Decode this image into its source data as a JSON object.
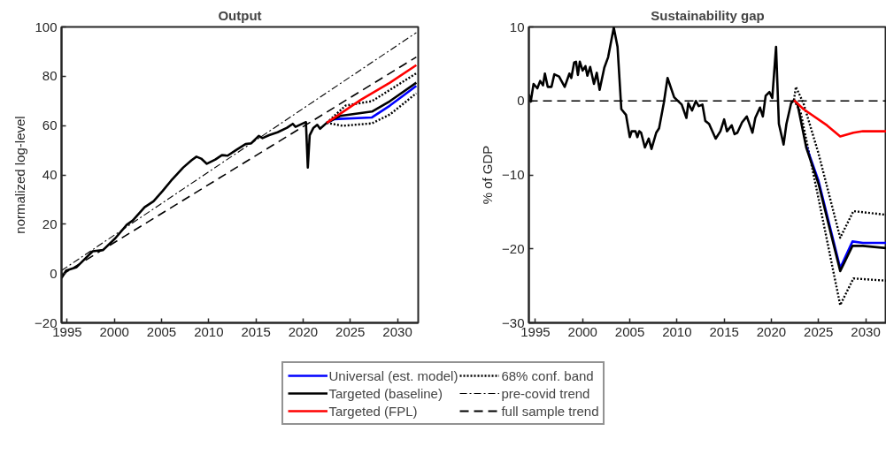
{
  "chart_data": [
    {
      "type": "line",
      "title": "Output",
      "ylabel": "normalized log-level",
      "xlim": [
        1994.4,
        2032.2
      ],
      "ylim": [
        -20,
        100
      ],
      "xticks": [
        1995,
        2000,
        2005,
        2010,
        2015,
        2020,
        2025,
        2030
      ],
      "yticks": [
        -20,
        0,
        20,
        40,
        60,
        80,
        100
      ],
      "grid": false,
      "legend": "bottom",
      "marker": "none",
      "series": [
        {
          "name": "68% conf. band",
          "color": "#000000",
          "line_style": "dotted",
          "x": [
            2022.5,
            2024.5,
            2027.3,
            2032.0
          ],
          "values": [
            61.1,
            68.1,
            69.9,
            81.2
          ]
        },
        {
          "color": "#000000",
          "line_style": "dotted",
          "x": [
            2022.5,
            2024.2,
            2027.3,
            2029.2,
            2032.0
          ],
          "values": [
            61.1,
            59.9,
            60.9,
            64.5,
            73.1
          ]
        },
        {
          "name": "pre-covid trend",
          "color": "#000000",
          "line_style": "dashdot",
          "x": [
            1994.4,
            2032.0
          ],
          "values": [
            1.2,
            97.7
          ]
        },
        {
          "name": "full sample trend",
          "color": "#000000",
          "line_style": "dashed",
          "x": [
            1994.4,
            2032.0
          ],
          "values": [
            -0.6,
            87.8
          ]
        },
        {
          "name": "Universal (est. model)",
          "color": "#0000ff",
          "line_style": "solid",
          "x": [
            2022.5,
            2023.3,
            2027.3,
            2029.2,
            2032.0
          ],
          "values": [
            61.1,
            62.6,
            63.3,
            68.1,
            76.1
          ]
        },
        {
          "name": "Targeted (baseline)",
          "color": "#000000",
          "line_style": "solid",
          "x": [
            1994.4,
            1994.9,
            1996.0,
            1997.7,
            1998.8,
            2000.1,
            2001.3,
            2001.95,
            2003.2,
            2004.15,
            2005.1,
            2006.0,
            2007.3,
            2008.2,
            2008.7,
            2009.2,
            2009.8,
            2010.7,
            2011.4,
            2012.0,
            2012.9,
            2013.9,
            2014.5,
            2015.3,
            2015.7,
            2016.4,
            2017.3,
            2018.3,
            2018.9,
            2019.2,
            2020.1,
            2020.3,
            2020.5,
            2020.7,
            2021.1,
            2021.5,
            2021.8,
            2022.5,
            2023.9,
            2027.3,
            2029.2,
            2032.0
          ],
          "values": [
            -1.8,
            1.2,
            2.6,
            9,
            9.5,
            14.3,
            19.7,
            21.5,
            26.9,
            29.3,
            33.4,
            37.6,
            43,
            46,
            47.4,
            46.6,
            44.5,
            46.2,
            48,
            47.8,
            50.1,
            52.5,
            52.8,
            55.8,
            54.9,
            56.1,
            57.3,
            59.1,
            60.7,
            59.5,
            61.1,
            61.4,
            43,
            56.1,
            59.1,
            60.3,
            58.7,
            61.1,
            63.9,
            65.7,
            69.9,
            77.4
          ]
        },
        {
          "name": "Targeted (FPL)",
          "color": "#ff0000",
          "line_style": "solid",
          "x": [
            2022.5,
            2026.1,
            2029.2,
            2032.0
          ],
          "values": [
            61.1,
            70.4,
            77.4,
            84.5
          ]
        }
      ]
    },
    {
      "type": "line",
      "title": "Sustainability gap",
      "ylabel": "% of GDP",
      "xlim": [
        1994.3,
        2032.2
      ],
      "ylim": [
        -30,
        10
      ],
      "xticks": [
        1995,
        2000,
        2005,
        2010,
        2015,
        2020,
        2025,
        2030
      ],
      "yticks": [
        -30,
        -20,
        -10,
        0,
        10
      ],
      "grid": false,
      "marker": "none",
      "ref_lines": [
        {
          "axis": "y",
          "value": 0,
          "color": "#000000",
          "line_style": "dashed"
        }
      ],
      "series": [
        {
          "color": "#000000",
          "line_style": "dotted",
          "x": [
            2022.4,
            2022.6,
            2023.4,
            2025.0,
            2027.3,
            2028.7,
            2032.2
          ],
          "values": [
            0.1,
            1.9,
            -0.3,
            -7.1,
            -18.5,
            -14.9,
            -15.4
          ]
        },
        {
          "color": "#000000",
          "line_style": "dotted",
          "x": [
            2022.4,
            2023.1,
            2025.0,
            2027.3,
            2028.7,
            2032.2
          ],
          "values": [
            0.1,
            -1.5,
            -13.2,
            -27.6,
            -24.0,
            -24.3
          ]
        },
        {
          "color": "#0000ff",
          "line_style": "solid",
          "x": [
            2023.7,
            2025.0,
            2027.3,
            2028.6,
            2029.7,
            2032.2
          ],
          "values": [
            -6.1,
            -10.8,
            -22.6,
            -19.0,
            -19.2,
            -19.2
          ]
        },
        {
          "color": "#000000",
          "line_style": "solid",
          "x": [
            1994.3,
            1994.5,
            1994.8,
            1995.2,
            1995.5,
            1995.8,
            1996.0,
            1996.3,
            1996.7,
            1997.0,
            1997.5,
            1998.1,
            1998.6,
            1998.8,
            1999.1,
            1999.3,
            1999.5,
            1999.7,
            2000.0,
            2000.3,
            2000.5,
            2000.8,
            2001.2,
            2001.5,
            2001.8,
            2002.3,
            2002.7,
            2003.3,
            2003.7,
            2004.1,
            2004.6,
            2005.0,
            2005.2,
            2005.6,
            2005.8,
            2006.0,
            2006.2,
            2006.6,
            2007.0,
            2007.3,
            2007.8,
            2008.1,
            2008.6,
            2009.0,
            2009.7,
            2010.5,
            2011.0,
            2011.2,
            2011.6,
            2012.0,
            2012.3,
            2012.7,
            2013.0,
            2013.4,
            2014.1,
            2014.6,
            2015.0,
            2015.3,
            2015.8,
            2016.1,
            2016.4,
            2016.9,
            2017.4,
            2018.0,
            2018.3,
            2018.8,
            2019.1,
            2019.4,
            2019.8,
            2020.1,
            2020.5,
            2020.8,
            2021.3,
            2021.6,
            2022.1,
            2022.4,
            2022.75,
            2023.7,
            2025.0,
            2027.3,
            2028.6,
            2029.7,
            2032.2
          ],
          "values": [
            0.9,
            -0.1,
            2.3,
            1.7,
            2.7,
            2.1,
            3.7,
            1.9,
            1.9,
            3.6,
            3.3,
            1.9,
            3.7,
            3.1,
            5.2,
            5.3,
            3.5,
            5.3,
            4.1,
            4.7,
            3.4,
            4.6,
            2.3,
            3.8,
            1.5,
            4.5,
            5.9,
            9.9,
            7.3,
            -1.1,
            -1.9,
            -4.9,
            -4.1,
            -4.1,
            -4.9,
            -4.1,
            -4.3,
            -6.3,
            -5.1,
            -6.5,
            -4.3,
            -3.7,
            -0.3,
            3.1,
            0.5,
            -0.5,
            -2.3,
            -0.3,
            -1.3,
            0,
            -0.7,
            -0.5,
            -2.7,
            -3.1,
            -5.1,
            -4.1,
            -2.5,
            -4.1,
            -3.3,
            -4.5,
            -4.3,
            -2.9,
            -2.1,
            -4.3,
            -2.3,
            -0.9,
            -2.1,
            0.7,
            1.2,
            0.4,
            7.3,
            -3.1,
            -5.9,
            -3.1,
            -0.3,
            0.1,
            -0.3,
            -6.3,
            -11.2,
            -23.0,
            -19.6,
            -19.6,
            -19.9
          ]
        },
        {
          "color": "#ff0000",
          "line_style": "solid",
          "x": [
            2022.4,
            2023.4,
            2025.9,
            2027.3,
            2028.7,
            2029.7,
            2032.2
          ],
          "values": [
            0.1,
            -1.1,
            -3.3,
            -4.8,
            -4.3,
            -4.1,
            -4.1
          ]
        }
      ]
    }
  ]
}
